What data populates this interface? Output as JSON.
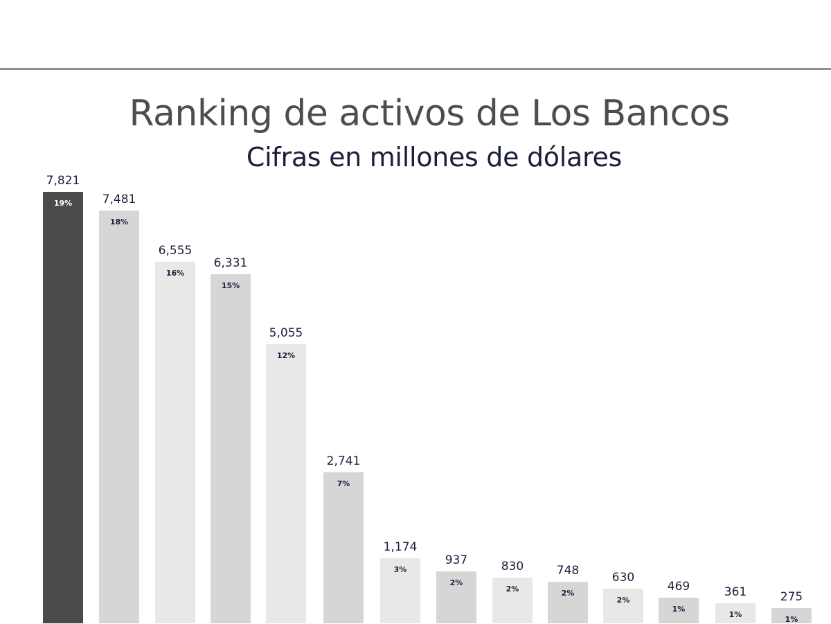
{
  "chart_data": {
    "type": "bar",
    "title": "Ranking de activos de Los Bancos",
    "subtitle": "Cifras en millones de dólares",
    "xlabel": "",
    "ylabel": "",
    "categories": [
      "",
      "",
      "",
      "",
      "",
      "",
      "",
      "",
      "",
      "",
      "",
      "",
      "",
      ""
    ],
    "values": [
      7821,
      7481,
      6555,
      6331,
      5055,
      2741,
      1174,
      937,
      830,
      748,
      630,
      469,
      361,
      275
    ],
    "value_labels": [
      "7,821",
      "7,481",
      "6,555",
      "6,331",
      "5,055",
      "2,741",
      "1,174",
      "937",
      "830",
      "748",
      "630",
      "469",
      "361",
      "275"
    ],
    "percent_labels": [
      "19%",
      "18%",
      "16%",
      "15%",
      "12%",
      "7%",
      "3%",
      "2%",
      "2%",
      "2%",
      "2%",
      "1%",
      "1%",
      "1%"
    ],
    "bar_colors": [
      "#4a4a4a",
      "#d6d6d6",
      "#e8e8e8",
      "#d6d6d6",
      "#e8e8e8",
      "#d6d6d6",
      "#e8e8e8",
      "#d6d6d6",
      "#e8e8e8",
      "#d6d6d6",
      "#e8e8e8",
      "#d6d6d6",
      "#e8e8e8",
      "#d6d6d6"
    ],
    "grid": false,
    "legend": false
  },
  "header": {
    "title": "Ranking de activos de Los Bancos",
    "subtitle": "Cifras en millones de dólares"
  }
}
